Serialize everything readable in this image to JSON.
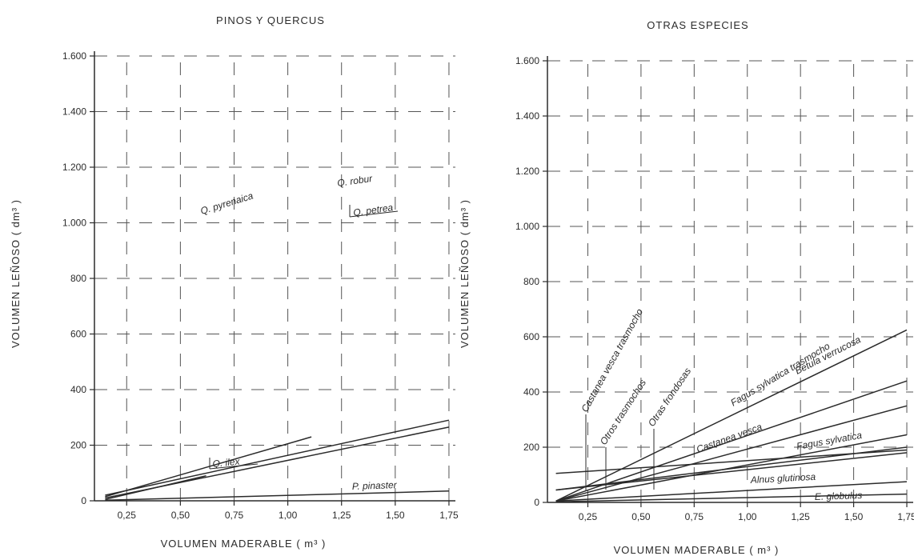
{
  "chart_data": [
    {
      "type": "line",
      "title": "PINOS Y QUERCUS",
      "xlabel": "VOLUMEN  MADERABLE ( m³ )",
      "ylabel": "VOLUMEN  LEÑOSO ( dm³ )",
      "xlim": [
        0.1,
        1.78
      ],
      "ylim": [
        0,
        1600
      ],
      "x_ticks": [
        0.25,
        0.5,
        0.75,
        1.0,
        1.25,
        1.5,
        1.75
      ],
      "x_tick_labels": [
        "0,25",
        "0,50",
        "0,75",
        "1,00",
        "1,25",
        "1,50",
        "1,75"
      ],
      "y_ticks": [
        0,
        200,
        400,
        600,
        800,
        1000,
        1200,
        1400,
        1600
      ],
      "y_tick_labels": [
        "0",
        "200",
        "400",
        "600",
        "800",
        "1.000",
        "1.200",
        "1.400",
        "1.600"
      ],
      "grid": true,
      "color": "#2b2b2b",
      "series": [
        {
          "name": "Q. pyrenaica",
          "x": [
            0.15,
            1.11
          ],
          "y": [
            15,
            230
          ]
        },
        {
          "name": "Q. robur",
          "x": [
            0.15,
            1.75
          ],
          "y": [
            20,
            290
          ]
        },
        {
          "name": "Q. petrea",
          "x": [
            0.15,
            1.75
          ],
          "y": [
            10,
            265
          ]
        },
        {
          "name": "Q. ilex",
          "x": [
            0.15,
            0.62
          ],
          "y": [
            5,
            90
          ]
        },
        {
          "name": "P. pinaster",
          "x": [
            0.15,
            1.75
          ],
          "y": [
            2,
            35
          ]
        }
      ]
    },
    {
      "type": "line",
      "title": "OTRAS  ESPECIES",
      "xlabel": "VOLUMEN  MADERABLE ( m³ )",
      "ylabel": "VOLUMEN  LEÑOSO ( dm³ )",
      "xlim": [
        0.06,
        1.78
      ],
      "ylim": [
        0,
        1600
      ],
      "x_ticks": [
        0.25,
        0.5,
        0.75,
        1.0,
        1.25,
        1.5,
        1.75
      ],
      "x_tick_labels": [
        "0,25",
        "0,50",
        "0,75",
        "1,00",
        "1,25",
        "1,50",
        "1,75"
      ],
      "y_ticks": [
        0,
        200,
        400,
        600,
        800,
        1000,
        1200,
        1400,
        1600
      ],
      "y_tick_labels": [
        "0",
        "200",
        "400",
        "600",
        "800",
        "1.000",
        "1.200",
        "1.400",
        "1.600"
      ],
      "grid": true,
      "color": "#2b2b2b",
      "series": [
        {
          "name": "Castanea vesca trasmocho",
          "x": [
            0.1,
            1.75
          ],
          "y": [
            105,
            190
          ]
        },
        {
          "name": "Otros trasmochos",
          "x": [
            0.1,
            1.75
          ],
          "y": [
            45,
            180
          ]
        },
        {
          "name": "Otras frondosas",
          "x": [
            0.1,
            1.75
          ],
          "y": [
            45,
            200
          ]
        },
        {
          "name": "Fagus sylvatica trasmocho",
          "x": [
            0.1,
            1.75
          ],
          "y": [
            5,
            625
          ]
        },
        {
          "name": "Castanea vesca",
          "x": [
            0.1,
            1.75
          ],
          "y": [
            5,
            350
          ]
        },
        {
          "name": "Betula verrucosa",
          "x": [
            0.1,
            1.75
          ],
          "y": [
            5,
            440
          ]
        },
        {
          "name": "Fagus sylvatica",
          "x": [
            0.1,
            1.75
          ],
          "y": [
            5,
            245
          ]
        },
        {
          "name": "Alnus glutinosa",
          "x": [
            0.1,
            1.75
          ],
          "y": [
            5,
            75
          ]
        },
        {
          "name": "E. globulus",
          "x": [
            0.1,
            1.75
          ],
          "y": [
            2,
            30
          ]
        }
      ]
    }
  ]
}
